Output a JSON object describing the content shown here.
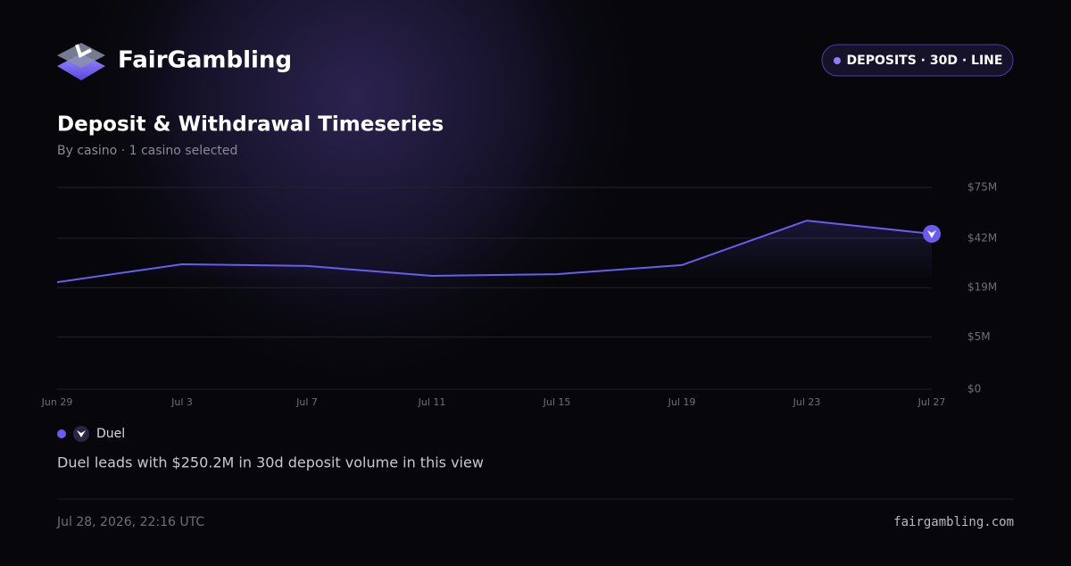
{
  "header": {
    "brand": "FairGambling",
    "badge": "DEPOSITS · 30D · LINE"
  },
  "chart_data": {
    "type": "line",
    "title": "Deposit & Withdrawal Timeseries",
    "subtitle": "By casino · 1 casino selected",
    "categories": [
      "Jun 29",
      "Jul 3",
      "Jul 7",
      "Jul 11",
      "Jul 15",
      "Jul 19",
      "Jul 23",
      "Jul 27"
    ],
    "series": [
      {
        "name": "Duel",
        "color": "#6b5cf0",
        "values": [
          21100000,
          28800000,
          28000000,
          23700000,
          24400000,
          28400000,
          52400000,
          44500000
        ]
      }
    ],
    "yscale": "sqrt",
    "ylim": [
      0,
      75000000
    ],
    "yticks": [
      {
        "value": 0,
        "label": "$0"
      },
      {
        "value": 5000000,
        "label": "$5M"
      },
      {
        "value": 19000000,
        "label": "$19M"
      },
      {
        "value": 42000000,
        "label": "$42M"
      },
      {
        "value": 75000000,
        "label": "$75M"
      }
    ],
    "grid": true
  },
  "summary": "Duel leads with $250.2M in 30d deposit volume in this view",
  "footer": {
    "timestamp": "Jul 28, 2026, 22:16 UTC",
    "domain": "fairgambling.com"
  }
}
